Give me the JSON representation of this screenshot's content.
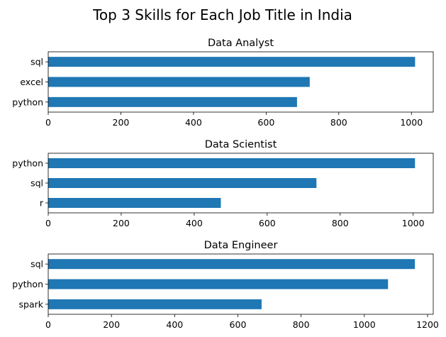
{
  "chart_data": {
    "type": "bar",
    "orientation": "horizontal",
    "title": "Top 3 Skills for Each Job Title in India",
    "bar_color": "#1f77b4",
    "subplots": [
      {
        "title": "Data Analyst",
        "categories": [
          "sql",
          "excel",
          "python"
        ],
        "values": [
          1010,
          720,
          685
        ],
        "xlim": [
          0,
          1060
        ],
        "xticks": [
          0,
          200,
          400,
          600,
          800,
          1000
        ],
        "xlabel": "",
        "ylabel": ""
      },
      {
        "title": "Data Scientist",
        "categories": [
          "python",
          "sql",
          "r"
        ],
        "values": [
          1005,
          735,
          473
        ],
        "xlim": [
          0,
          1055
        ],
        "xticks": [
          0,
          200,
          400,
          600,
          800,
          1000
        ],
        "xlabel": "",
        "ylabel": ""
      },
      {
        "title": "Data Engineer",
        "categories": [
          "sql",
          "python",
          "spark"
        ],
        "values": [
          1160,
          1075,
          675
        ],
        "xlim": [
          0,
          1218
        ],
        "xticks": [
          0,
          200,
          400,
          600,
          800,
          1000,
          1200
        ],
        "xlabel": "",
        "ylabel": ""
      }
    ],
    "grid": false,
    "legend": "none"
  }
}
